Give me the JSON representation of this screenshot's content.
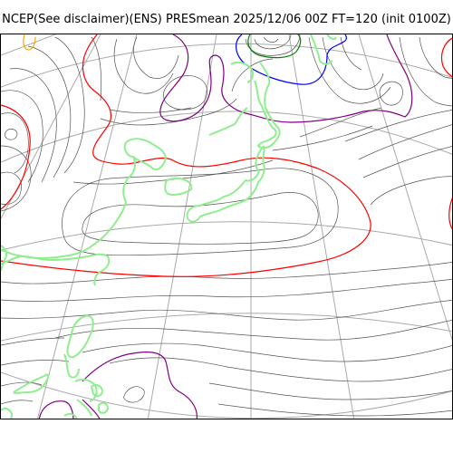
{
  "title": "NCEP(See disclaimer)(ENS) PRESmean 2025/12/06 00Z FT=120 (init 0100Z)",
  "colors": {
    "background": "#ffffff",
    "isobar": "#555555",
    "graticule": "#aaaaaa",
    "coastline": "#90ee90",
    "contour_red": "#ff0000",
    "contour_purple": "#800080",
    "contour_blue": "#0000ff",
    "contour_green": "#008000",
    "contour_orange": "#ffa500"
  }
}
